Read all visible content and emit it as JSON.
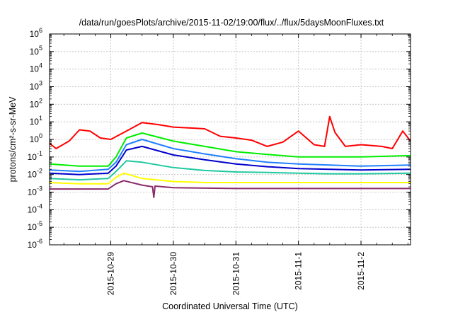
{
  "chart_data": {
    "type": "line",
    "title": "/data/run/goesPlots/archive/2015-11-02/19:00/flux/../flux/5daysMoonFluxes.txt",
    "xlabel": "Coordinated Universal Time (UTC)",
    "ylabel": "protons/cm²-s-sr-MeV",
    "y_scale": "log",
    "ylim": [
      1e-06,
      1000000.0
    ],
    "xlim": [
      "2015-10-28T00:30",
      "2015-11-02T19:00"
    ],
    "grid": true,
    "legend": "none",
    "y_ticks": [
      {
        "value": 1e-06,
        "base": "10",
        "exp": "-6"
      },
      {
        "value": 1e-05,
        "base": "10",
        "exp": "-5"
      },
      {
        "value": 0.0001,
        "base": "10",
        "exp": "-4"
      },
      {
        "value": 0.001,
        "base": "10",
        "exp": "-3"
      },
      {
        "value": 0.01,
        "base": "10",
        "exp": "-2"
      },
      {
        "value": 0.1,
        "base": "10",
        "exp": "-1"
      },
      {
        "value": 1,
        "base": "10",
        "exp": "0"
      },
      {
        "value": 10,
        "base": "10",
        "exp": "1"
      },
      {
        "value": 100,
        "base": "10",
        "exp": "2"
      },
      {
        "value": 1000,
        "base": "10",
        "exp": "3"
      },
      {
        "value": 10000,
        "base": "10",
        "exp": "4"
      },
      {
        "value": 100000,
        "base": "10",
        "exp": "5"
      },
      {
        "value": 1000000,
        "base": "10",
        "exp": "6"
      }
    ],
    "x_ticks": [
      {
        "date": "2015-10-29",
        "label": "2015-10-29"
      },
      {
        "date": "2015-10-30",
        "label": "2015-10-30"
      },
      {
        "date": "2015-10-31",
        "label": "2015-10-31"
      },
      {
        "date": "2015-11-01",
        "label": "2015-11-1"
      },
      {
        "date": "2015-11-02",
        "label": "2015-11-2"
      }
    ],
    "series": [
      {
        "color": "#ff0000",
        "x": [
          "2015-10-28T00:30",
          "2015-10-28T03:00",
          "2015-10-28T08:00",
          "2015-10-28T12:00",
          "2015-10-28T16:00",
          "2015-10-28T20:00",
          "2015-10-29T00:00",
          "2015-10-29T06:00",
          "2015-10-29T12:00",
          "2015-10-29T18:00",
          "2015-10-30T00:00",
          "2015-10-30T06:00",
          "2015-10-30T12:00",
          "2015-10-30T18:00",
          "2015-10-31T00:00",
          "2015-10-31T06:00",
          "2015-10-31T12:00",
          "2015-10-31T18:00",
          "2015-11-01T00:00",
          "2015-11-01T06:00",
          "2015-11-01T10:00",
          "2015-11-01T12:00",
          "2015-11-01T14:00",
          "2015-11-01T18:00",
          "2015-11-02T00:00",
          "2015-11-02T08:00",
          "2015-11-02T12:00",
          "2015-11-02T16:00",
          "2015-11-02T19:00"
        ],
        "y": [
          0.6,
          0.3,
          0.8,
          3.5,
          3.0,
          1.2,
          1.0,
          3.0,
          9.0,
          7.0,
          5.0,
          4.5,
          4.0,
          1.5,
          1.2,
          0.9,
          0.4,
          0.7,
          3.0,
          0.5,
          0.4,
          20,
          2.5,
          0.4,
          0.5,
          0.4,
          0.3,
          3.0,
          0.8
        ]
      },
      {
        "color": "#00ee00",
        "x": [
          "2015-10-28T00:30",
          "2015-10-28T12:00",
          "2015-10-28T23:00",
          "2015-10-29T02:00",
          "2015-10-29T06:00",
          "2015-10-29T12:00",
          "2015-10-30T00:00",
          "2015-10-30T12:00",
          "2015-10-31T00:00",
          "2015-10-31T12:00",
          "2015-11-01T00:00",
          "2015-11-01T12:00",
          "2015-11-02T00:00",
          "2015-11-02T19:00"
        ],
        "y": [
          0.04,
          0.03,
          0.03,
          0.1,
          1.2,
          2.3,
          0.8,
          0.4,
          0.2,
          0.14,
          0.1,
          0.1,
          0.1,
          0.12
        ]
      },
      {
        "color": "#2080ff",
        "x": [
          "2015-10-28T00:30",
          "2015-10-28T12:00",
          "2015-10-28T23:00",
          "2015-10-29T02:00",
          "2015-10-29T06:00",
          "2015-10-29T12:00",
          "2015-10-30T00:00",
          "2015-10-30T12:00",
          "2015-10-31T00:00",
          "2015-10-31T12:00",
          "2015-11-01T00:00",
          "2015-11-01T12:00",
          "2015-11-02T00:00",
          "2015-11-02T19:00"
        ],
        "y": [
          0.018,
          0.015,
          0.02,
          0.05,
          0.5,
          1.0,
          0.3,
          0.15,
          0.08,
          0.05,
          0.04,
          0.035,
          0.03,
          0.035
        ]
      },
      {
        "color": "#0000cc",
        "x": [
          "2015-10-28T00:30",
          "2015-10-28T12:00",
          "2015-10-28T23:00",
          "2015-10-29T02:00",
          "2015-10-29T06:00",
          "2015-10-29T12:00",
          "2015-10-30T00:00",
          "2015-10-30T12:00",
          "2015-10-31T00:00",
          "2015-10-31T12:00",
          "2015-11-01T00:00",
          "2015-11-01T12:00",
          "2015-11-02T00:00",
          "2015-11-02T19:00"
        ],
        "y": [
          0.012,
          0.01,
          0.012,
          0.03,
          0.25,
          0.4,
          0.13,
          0.07,
          0.04,
          0.028,
          0.022,
          0.02,
          0.018,
          0.02
        ]
      },
      {
        "color": "#20c8a0",
        "x": [
          "2015-10-28T00:30",
          "2015-10-28T12:00",
          "2015-10-28T23:00",
          "2015-10-29T02:00",
          "2015-10-29T06:00",
          "2015-10-29T12:00",
          "2015-10-30T00:00",
          "2015-10-30T12:00",
          "2015-10-31T00:00",
          "2015-10-31T12:00",
          "2015-11-01T00:00",
          "2015-11-01T12:00",
          "2015-11-02T00:00",
          "2015-11-02T19:00"
        ],
        "y": [
          0.006,
          0.005,
          0.006,
          0.015,
          0.06,
          0.05,
          0.025,
          0.017,
          0.014,
          0.013,
          0.012,
          0.011,
          0.011,
          0.012
        ]
      },
      {
        "color": "#ffff00",
        "x": [
          "2015-10-28T00:30",
          "2015-10-28T12:00",
          "2015-10-28T23:00",
          "2015-10-29T02:00",
          "2015-10-29T05:00",
          "2015-10-29T12:00",
          "2015-10-30T00:00",
          "2015-10-30T12:00",
          "2015-10-31T00:00",
          "2015-11-01T00:00",
          "2015-11-02T00:00",
          "2015-11-02T19:00"
        ],
        "y": [
          0.0035,
          0.003,
          0.003,
          0.007,
          0.012,
          0.006,
          0.004,
          0.0035,
          0.0035,
          0.0035,
          0.0035,
          0.0035
        ]
      },
      {
        "color": "#8b2a6b",
        "x": [
          "2015-10-28T00:30",
          "2015-10-28T12:00",
          "2015-10-28T23:00",
          "2015-10-29T02:00",
          "2015-10-29T05:00",
          "2015-10-29T12:00",
          "2015-10-29T16:00",
          "2015-10-29T16:30",
          "2015-10-29T17:00",
          "2015-10-30T00:00",
          "2015-10-31T00:00",
          "2015-11-01T00:00",
          "2015-11-02T00:00",
          "2015-11-02T19:00"
        ],
        "y": [
          0.0015,
          0.0015,
          0.0015,
          0.003,
          0.0045,
          0.0025,
          0.002,
          0.0005,
          0.0022,
          0.0018,
          0.0016,
          0.0016,
          0.0016,
          0.0016
        ]
      }
    ]
  }
}
